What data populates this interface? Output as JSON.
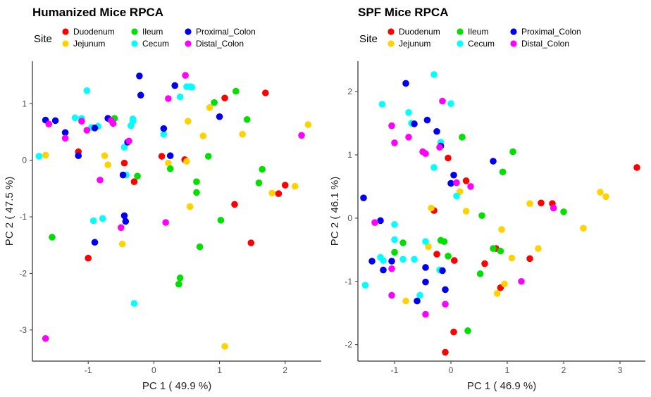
{
  "colors": {
    "Duodenum": "#ff0000",
    "Ileum": "#00e000",
    "Proximal_Colon": "#0000ee",
    "Jejunum": "#ffd200",
    "Cecum": "#00ffff",
    "Distal_Colon": "#ff00ff"
  },
  "chart_data": [
    {
      "type": "scatter",
      "title": "Humanized Mice RPCA",
      "xlabel": "PC 1 ( 49.9 %)",
      "ylabel": "PC 2 ( 47.5 %)",
      "xlim": [
        -1.85,
        2.55
      ],
      "ylim": [
        -3.55,
        1.75
      ],
      "xticks": [
        -1,
        0,
        1,
        2
      ],
      "yticks": [
        -3,
        -2,
        -1,
        0,
        1
      ],
      "grid": false,
      "legend": {
        "title": "Site",
        "position": "top",
        "items": [
          "Duodenum",
          "Jejunum",
          "Ileum",
          "Cecum",
          "Proximal_Colon",
          "Distal_Colon"
        ]
      },
      "series": [
        {
          "name": "Duodenum",
          "points": [
            [
              -1.15,
              0.15
            ],
            [
              -1.0,
              -1.73
            ],
            [
              -0.45,
              -0.05
            ],
            [
              -0.3,
              -0.38
            ],
            [
              0.12,
              0.07
            ],
            [
              0.47,
              0.01
            ],
            [
              1.08,
              1.1
            ],
            [
              1.23,
              -0.78
            ],
            [
              1.48,
              -1.46
            ],
            [
              1.7,
              1.19
            ],
            [
              1.9,
              -0.59
            ],
            [
              2.0,
              -0.44
            ]
          ]
        },
        {
          "name": "Jejunum",
          "points": [
            [
              -1.65,
              0.09
            ],
            [
              -0.75,
              0.08
            ],
            [
              -0.7,
              -0.08
            ],
            [
              -0.48,
              -1.48
            ],
            [
              0.22,
              -0.05
            ],
            [
              0.5,
              -0.02
            ],
            [
              0.52,
              0.69
            ],
            [
              0.55,
              -0.82
            ],
            [
              0.75,
              0.43
            ],
            [
              0.85,
              0.93
            ],
            [
              1.08,
              -3.29
            ],
            [
              1.35,
              0.46
            ],
            [
              1.8,
              -0.58
            ],
            [
              2.15,
              -0.46
            ],
            [
              2.35,
              0.63
            ]
          ]
        },
        {
          "name": "Ileum",
          "points": [
            [
              -1.55,
              -1.36
            ],
            [
              -0.6,
              0.74
            ],
            [
              -0.25,
              -0.28
            ],
            [
              0.25,
              -0.15
            ],
            [
              0.38,
              -2.19
            ],
            [
              0.4,
              -2.08
            ],
            [
              0.65,
              -0.38
            ],
            [
              0.65,
              -0.57
            ],
            [
              0.7,
              -1.53
            ],
            [
              0.83,
              0.07
            ],
            [
              0.92,
              1.02
            ],
            [
              1.02,
              -1.06
            ],
            [
              1.25,
              1.22
            ],
            [
              1.42,
              0.72
            ],
            [
              1.6,
              -0.4
            ],
            [
              1.65,
              -0.16
            ]
          ]
        },
        {
          "name": "Cecum",
          "points": [
            [
              -1.75,
              0.07
            ],
            [
              -1.2,
              0.75
            ],
            [
              -1.1,
              0.74
            ],
            [
              -1.02,
              1.23
            ],
            [
              -0.95,
              0.58
            ],
            [
              -0.92,
              -1.07
            ],
            [
              -0.85,
              0.6
            ],
            [
              -0.78,
              -1.03
            ],
            [
              -0.45,
              0.23
            ],
            [
              -0.42,
              -0.26
            ],
            [
              -0.35,
              0.61
            ],
            [
              -0.32,
              0.73
            ],
            [
              -0.32,
              0.69
            ],
            [
              -0.3,
              -2.53
            ],
            [
              0.15,
              0.46
            ],
            [
              0.4,
              1.12
            ],
            [
              0.5,
              1.3
            ],
            [
              0.55,
              1.3
            ],
            [
              0.58,
              1.29
            ]
          ]
        },
        {
          "name": "Proximal_Colon",
          "points": [
            [
              -1.65,
              0.71
            ],
            [
              -1.5,
              0.7
            ],
            [
              -1.35,
              0.49
            ],
            [
              -1.15,
              0.08
            ],
            [
              -0.9,
              0.57
            ],
            [
              -0.9,
              -1.45
            ],
            [
              -0.7,
              0.74
            ],
            [
              -0.47,
              -0.26
            ],
            [
              -0.45,
              -0.98
            ],
            [
              -0.43,
              -1.08
            ],
            [
              -0.4,
              0.32
            ],
            [
              -0.22,
              1.49
            ],
            [
              -0.2,
              1.15
            ],
            [
              0.15,
              0.56
            ],
            [
              0.25,
              0.08
            ],
            [
              0.32,
              1.32
            ],
            [
              1.0,
              0.77
            ]
          ]
        },
        {
          "name": "Distal_Colon",
          "points": [
            [
              -1.65,
              -3.15
            ],
            [
              -1.6,
              0.64
            ],
            [
              -1.35,
              0.39
            ],
            [
              -1.1,
              0.69
            ],
            [
              -1.02,
              0.53
            ],
            [
              -0.82,
              -0.35
            ],
            [
              -0.65,
              0.7
            ],
            [
              -0.5,
              -1.19
            ],
            [
              -0.62,
              0.65
            ],
            [
              -0.38,
              0.34
            ],
            [
              0.18,
              -1.1
            ],
            [
              0.22,
              1.09
            ],
            [
              0.48,
              1.5
            ],
            [
              2.25,
              0.44
            ]
          ]
        }
      ]
    },
    {
      "type": "scatter",
      "title": "SPF Mice RPCA",
      "xlabel": "PC 1 ( 46.9 %)",
      "ylabel": "PC 2 ( 46.1 %)",
      "xlim": [
        -1.65,
        3.45
      ],
      "ylim": [
        -2.26,
        2.48
      ],
      "xticks": [
        -1,
        0,
        1,
        2,
        3
      ],
      "yticks": [
        -2,
        -1,
        0,
        1,
        2
      ],
      "grid": false,
      "legend": {
        "title": "Site",
        "position": "top",
        "items": [
          "Duodenum",
          "Jejunum",
          "Ileum",
          "Cecum",
          "Proximal_Colon",
          "Distal_Colon"
        ]
      },
      "series": [
        {
          "name": "Duodenum",
          "points": [
            [
              -0.25,
              -0.57
            ],
            [
              -0.3,
              0.12
            ],
            [
              -0.05,
              0.95
            ],
            [
              -0.1,
              -2.12
            ],
            [
              0.05,
              -1.8
            ],
            [
              0.06,
              -0.67
            ],
            [
              0.27,
              0.59
            ],
            [
              0.6,
              -0.72
            ],
            [
              0.8,
              -0.48
            ],
            [
              0.88,
              -1.1
            ],
            [
              1.4,
              -0.64
            ],
            [
              1.6,
              0.24
            ],
            [
              1.8,
              0.23
            ],
            [
              3.3,
              0.8
            ]
          ]
        },
        {
          "name": "Jejunum",
          "points": [
            [
              -0.8,
              -1.31
            ],
            [
              -0.4,
              -0.45
            ],
            [
              -0.35,
              0.16
            ],
            [
              0.16,
              0.42
            ],
            [
              0.27,
              0.11
            ],
            [
              0.82,
              -1.19
            ],
            [
              0.9,
              -0.18
            ],
            [
              0.95,
              -1.04
            ],
            [
              1.08,
              -0.63
            ],
            [
              1.4,
              0.23
            ],
            [
              1.55,
              -0.48
            ],
            [
              2.35,
              -0.16
            ],
            [
              2.65,
              0.41
            ],
            [
              2.75,
              0.34
            ]
          ]
        },
        {
          "name": "Ileum",
          "points": [
            [
              -1.0,
              -0.54
            ],
            [
              -0.85,
              -0.39
            ],
            [
              -0.12,
              -0.37
            ],
            [
              -0.05,
              -0.6
            ],
            [
              0.2,
              1.28
            ],
            [
              0.3,
              -1.78
            ],
            [
              0.52,
              -0.88
            ],
            [
              0.55,
              0.04
            ],
            [
              0.75,
              -0.48
            ],
            [
              0.88,
              -0.52
            ],
            [
              0.92,
              0.73
            ],
            [
              1.1,
              1.05
            ],
            [
              2.0,
              0.1
            ],
            [
              -0.18,
              -0.35
            ]
          ]
        },
        {
          "name": "Cecum",
          "points": [
            [
              -1.52,
              -1.06
            ],
            [
              -1.25,
              -0.62
            ],
            [
              -1.22,
              1.8
            ],
            [
              -1.2,
              -0.67
            ],
            [
              -1.0,
              -0.1
            ],
            [
              -1.0,
              -0.34
            ],
            [
              -0.85,
              -0.65
            ],
            [
              -0.75,
              1.67
            ],
            [
              -0.7,
              1.5
            ],
            [
              -0.65,
              -0.65
            ],
            [
              -0.55,
              -1.22
            ],
            [
              -0.45,
              -0.37
            ],
            [
              -0.3,
              2.27
            ],
            [
              -0.3,
              0.8
            ],
            [
              -0.2,
              -0.82
            ],
            [
              -0.18,
              1.2
            ],
            [
              0.0,
              1.81
            ],
            [
              0.1,
              0.35
            ]
          ]
        },
        {
          "name": "Proximal_Colon",
          "points": [
            [
              -1.55,
              0.32
            ],
            [
              -1.4,
              -0.68
            ],
            [
              -1.25,
              -0.04
            ],
            [
              -1.2,
              -0.82
            ],
            [
              -1.05,
              -0.68
            ],
            [
              -0.8,
              2.13
            ],
            [
              -0.65,
              1.49
            ],
            [
              -0.6,
              -1.31
            ],
            [
              -0.45,
              -1.01
            ],
            [
              -0.45,
              -0.78
            ],
            [
              -0.42,
              1.55
            ],
            [
              -0.25,
              1.37
            ],
            [
              -0.18,
              1.14
            ],
            [
              -0.1,
              -1.13
            ],
            [
              -0.15,
              -0.83
            ],
            [
              0.0,
              0.55
            ],
            [
              0.05,
              0.68
            ],
            [
              0.75,
              0.9
            ]
          ]
        },
        {
          "name": "Distal_Colon",
          "points": [
            [
              -1.35,
              -0.07
            ],
            [
              -1.05,
              1.46
            ],
            [
              -1.05,
              -0.8
            ],
            [
              -1.05,
              -1.22
            ],
            [
              -1.0,
              1.19
            ],
            [
              -0.75,
              1.28
            ],
            [
              -0.5,
              1.05
            ],
            [
              -0.45,
              1.02
            ],
            [
              -0.45,
              -1.52
            ],
            [
              -0.2,
              1.12
            ],
            [
              -0.15,
              1.85
            ],
            [
              -0.1,
              -1.36
            ],
            [
              0.1,
              0.56
            ],
            [
              0.35,
              0.5
            ],
            [
              1.25,
              -1.0
            ],
            [
              1.82,
              0.16
            ]
          ]
        }
      ]
    }
  ]
}
